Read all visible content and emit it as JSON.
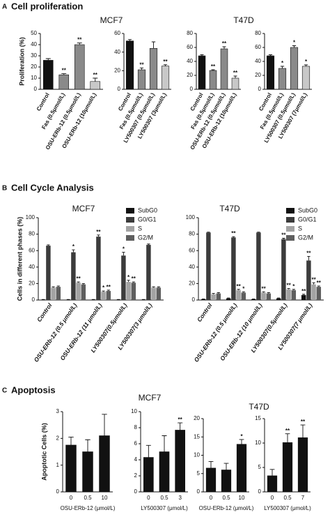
{
  "panels": [
    {
      "letter": "A",
      "title": "Cell proliferation",
      "labels": [
        "MCF7",
        "T47D"
      ]
    },
    {
      "letter": "B",
      "title": "Cell Cycle Analysis",
      "labels": [
        "MCF7",
        "T47D"
      ]
    },
    {
      "letter": "C",
      "title": "Apoptosis",
      "labels": [
        "MCF7",
        "T47D"
      ]
    }
  ],
  "chart_data": [
    {
      "type": "bar",
      "ylabel": "Proliferation (%)",
      "categories": [
        "Control",
        "Fas (0.5μmol/L)",
        "OSU-ERb-12 (0.5μmol/L)",
        "OSU-ERb-12 (10μmol/L)"
      ],
      "values": [
        26,
        13,
        40,
        7
      ],
      "errors": [
        1.5,
        1,
        1.5,
        3
      ],
      "annotations": [
        null,
        "**",
        "**",
        "**"
      ],
      "colors": [
        "#111111",
        "#8a8a8a",
        "#8a8a8a",
        "#c8c8c8"
      ],
      "ylim": [
        0,
        50
      ],
      "yticks": [
        0,
        10,
        20,
        30,
        40,
        50
      ]
    },
    {
      "type": "bar",
      "categories": [
        "Control",
        "Fas (0.5μmol/L)",
        "LY500307 (0.5μmol/L)",
        "LY500307 (3μmol/L)"
      ],
      "values": [
        52,
        21,
        44,
        25
      ],
      "errors": [
        1.5,
        2,
        7,
        1.5
      ],
      "annotations": [
        null,
        "**",
        null,
        "**"
      ],
      "colors": [
        "#111111",
        "#8a8a8a",
        "#8a8a8a",
        "#c8c8c8"
      ],
      "ylim": [
        0,
        60
      ],
      "yticks": [
        0,
        20,
        40,
        60
      ]
    },
    {
      "type": "bar",
      "categories": [
        "Control",
        "Fas (0.5μmol/L)",
        "OSU-ERb-12 (0.5μmol/L)",
        "OSU-ERb-12 (10μmol/L)"
      ],
      "values": [
        48,
        27,
        58,
        16
      ],
      "errors": [
        1.5,
        1,
        3,
        3
      ],
      "annotations": [
        null,
        "**",
        "**",
        "**"
      ],
      "colors": [
        "#111111",
        "#8a8a8a",
        "#8a8a8a",
        "#c8c8c8"
      ],
      "ylim": [
        0,
        80
      ],
      "yticks": [
        0,
        20,
        40,
        60,
        80
      ]
    },
    {
      "type": "bar",
      "categories": [
        "Control",
        "Fas (0.5μmol/L)",
        "LY500307 (0.5μmol/L)",
        "LY500307 (7μmol/L)"
      ],
      "values": [
        48,
        30,
        60,
        33
      ],
      "errors": [
        1.5,
        3,
        2.5,
        2
      ],
      "annotations": [
        null,
        "*",
        "*",
        "*"
      ],
      "colors": [
        "#111111",
        "#8a8a8a",
        "#8a8a8a",
        "#c8c8c8"
      ],
      "ylim": [
        0,
        80
      ],
      "yticks": [
        0,
        20,
        40,
        60,
        80
      ]
    },
    {
      "type": "grouped_bar",
      "ylabel": "Cells in different phases (%)",
      "legend": "upper right",
      "categories": [
        "Control",
        "OSU-ERb-12 (0.5 μmol/L)",
        "OSU-ERb-12 (11 μmol/L)",
        "LY500307(0.5μmol/L)",
        "LY500307(3 μmol/L)"
      ],
      "series": [
        {
          "name": "SubG0",
          "color": "#111111",
          "values": [
            0.5,
            0.5,
            0.5,
            0.5,
            0.5
          ],
          "errors": [
            0.2,
            0.2,
            0.2,
            0.2,
            0.2
          ],
          "annotations": [
            null,
            null,
            null,
            null,
            null
          ]
        },
        {
          "name": "G0/G1",
          "color": "#3c3c3c",
          "values": [
            66,
            58,
            77,
            54,
            67
          ],
          "errors": [
            1,
            3,
            2,
            4,
            1
          ],
          "annotations": [
            null,
            "*",
            "**",
            "*",
            null
          ]
        },
        {
          "name": "S",
          "color": "#a3a3a3",
          "values": [
            15,
            21,
            10,
            22,
            15
          ],
          "errors": [
            1,
            1,
            1,
            2,
            1
          ],
          "annotations": [
            null,
            "**",
            "*",
            "*",
            null
          ]
        },
        {
          "name": "G2/M",
          "color": "#5e5e5e",
          "values": [
            16,
            19,
            11,
            21,
            15
          ],
          "errors": [
            1,
            1,
            1,
            1,
            1
          ],
          "annotations": [
            null,
            null,
            "**",
            "**",
            null
          ]
        }
      ],
      "ylim": [
        0,
        100
      ],
      "yticks": [
        0,
        20,
        40,
        60,
        80,
        100
      ]
    },
    {
      "type": "grouped_bar",
      "legend": "upper right",
      "categories": [
        "Control",
        "OSU-ERb-12 (0.5 μmol/L)",
        "OSU-ERb-12 (10 μmol/L)",
        "LY500307(0.5μmol/L)",
        "LY500307(7 μmol/L)"
      ],
      "series": [
        {
          "name": "SubG0",
          "color": "#111111",
          "values": [
            1,
            2,
            1,
            2,
            6
          ],
          "errors": [
            0.3,
            0.5,
            0.3,
            0.5,
            1
          ],
          "annotations": [
            null,
            null,
            null,
            null,
            "**"
          ]
        },
        {
          "name": "G0/G1",
          "color": "#3c3c3c",
          "values": [
            82,
            76,
            82,
            74,
            48
          ],
          "errors": [
            0.5,
            1,
            0.5,
            1,
            5
          ],
          "annotations": [
            null,
            "**",
            null,
            "**",
            "**"
          ]
        },
        {
          "name": "S",
          "color": "#a3a3a3",
          "values": [
            7,
            12,
            9,
            13,
            19
          ],
          "errors": [
            1,
            1,
            1,
            1,
            2
          ],
          "annotations": [
            null,
            "**",
            "**",
            "**",
            "**"
          ]
        },
        {
          "name": "G2/M",
          "color": "#5e5e5e",
          "values": [
            8,
            9,
            8,
            12,
            16
          ],
          "errors": [
            1,
            1,
            1,
            1,
            1
          ],
          "annotations": [
            null,
            "*",
            null,
            "*",
            "**"
          ]
        }
      ],
      "ylim": [
        0,
        100
      ],
      "yticks": [
        0,
        20,
        40,
        60,
        80,
        100
      ]
    },
    {
      "type": "bar",
      "ylabel": "Apoptotic Cells (%)",
      "xlabel": "OSU-ERb-12 (μmol/L)",
      "categories": [
        "0",
        "0.5",
        "10"
      ],
      "values": [
        1.75,
        1.5,
        2.1
      ],
      "errors": [
        0.3,
        0.45,
        0.8
      ],
      "annotations": [
        null,
        null,
        null
      ],
      "colors": [
        "#111111",
        "#111111",
        "#111111"
      ],
      "ylim": [
        0,
        3
      ],
      "yticks": [
        0,
        1,
        2,
        3
      ]
    },
    {
      "type": "bar",
      "xlabel": "LY500307 (μmol/L)",
      "categories": [
        "0",
        "0.5",
        "3"
      ],
      "values": [
        4.3,
        5.0,
        7.7
      ],
      "errors": [
        1.5,
        2,
        0.9
      ],
      "annotations": [
        null,
        null,
        "**"
      ],
      "colors": [
        "#111111",
        "#111111",
        "#111111"
      ],
      "ylim": [
        0,
        10
      ],
      "yticks": [
        0,
        2,
        4,
        6,
        8,
        10
      ]
    },
    {
      "type": "bar",
      "xlabel": "OSU-ERb-12 (μmol/L)",
      "categories": [
        "0",
        "0.5",
        "10"
      ],
      "values": [
        6.5,
        6.0,
        13
      ],
      "errors": [
        1.8,
        1.8,
        1.3
      ],
      "annotations": [
        null,
        null,
        "*"
      ],
      "colors": [
        "#111111",
        "#111111",
        "#111111"
      ],
      "ylim": [
        0,
        20
      ],
      "yticks": [
        0,
        5,
        10,
        15,
        20
      ]
    },
    {
      "type": "bar",
      "xlabel": "LY500307 (μmol/L)",
      "categories": [
        "0",
        "0.5",
        "7"
      ],
      "values": [
        3.3,
        10.1,
        11.1
      ],
      "errors": [
        1.3,
        1.8,
        2.6
      ],
      "annotations": [
        null,
        "**",
        "**"
      ],
      "colors": [
        "#111111",
        "#111111",
        "#111111"
      ],
      "ylim": [
        0,
        15
      ],
      "yticks": [
        0,
        5,
        10,
        15
      ]
    }
  ]
}
